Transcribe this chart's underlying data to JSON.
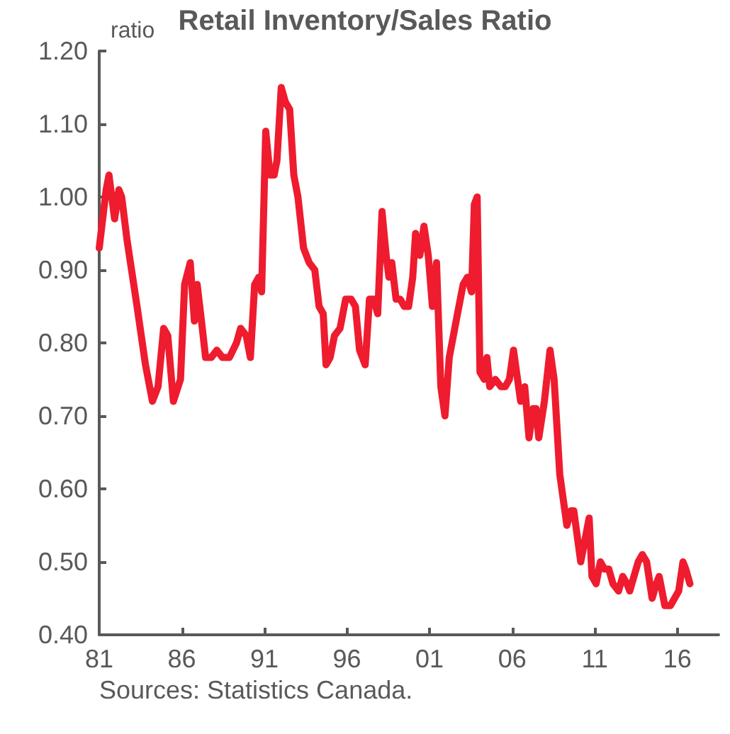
{
  "chart_data": {
    "type": "line",
    "title": "Retail Inventory/Sales Ratio",
    "ylabel": "ratio",
    "annotations": [
      "Sources: Statistics Canada."
    ],
    "x": [
      1981,
      1981.42,
      1981.59,
      1981.93,
      1982.19,
      1982.36,
      1982.69,
      1983.29,
      1983.8,
      1984.22,
      1984.56,
      1984.9,
      1985.15,
      1985.49,
      1985.92,
      1986.17,
      1986.51,
      1986.76,
      1986.93,
      1987.19,
      1987.44,
      1987.78,
      1988.12,
      1988.46,
      1988.88,
      1989.31,
      1989.56,
      1989.9,
      1990.15,
      1990.41,
      1990.66,
      1990.83,
      1991.08,
      1991.34,
      1991.59,
      1991.76,
      1992.02,
      1992.27,
      1992.53,
      1992.78,
      1993.03,
      1993.37,
      1993.71,
      1994.05,
      1994.31,
      1994.56,
      1994.73,
      1994.98,
      1995.24,
      1995.58,
      1995.92,
      1996.25,
      1996.51,
      1996.76,
      1997.1,
      1997.36,
      1997.61,
      1997.86,
      1998.12,
      1998.37,
      1998.54,
      1998.71,
      1998.97,
      1999.22,
      1999.47,
      1999.73,
      1999.98,
      2000.15,
      2000.41,
      2000.66,
      2000.92,
      2001.17,
      2001.42,
      2001.68,
      2001.93,
      2002.19,
      2002.69,
      2003.03,
      2003.29,
      2003.54,
      2003.71,
      2003.88,
      2004.05,
      2004.31,
      2004.47,
      2004.64,
      2004.98,
      2005.32,
      2005.58,
      2005.83,
      2006.08,
      2006.51,
      2006.76,
      2007.02,
      2007.27,
      2007.44,
      2007.61,
      2007.95,
      2008.29,
      2008.54,
      2008.88,
      2009.31,
      2009.56,
      2009.73,
      2010.15,
      2010.66,
      2010.83,
      2011.08,
      2011.34,
      2011.59,
      2011.85,
      2012.1,
      2012.44,
      2012.69,
      2012.95,
      2013.12,
      2013.37,
      2013.63,
      2013.88,
      2014.14,
      2014.47,
      2014.73,
      2014.9,
      2015.24,
      2015.58,
      2015.83,
      2016.08,
      2016.34,
      2016.51,
      2016.76
    ],
    "series": [
      {
        "color": "#ee1c2e",
        "values": [
          0.93,
          1.01,
          1.03,
          0.97,
          1.01,
          1.0,
          0.94,
          0.85,
          0.77,
          0.72,
          0.74,
          0.82,
          0.81,
          0.72,
          0.75,
          0.88,
          0.91,
          0.83,
          0.88,
          0.83,
          0.78,
          0.78,
          0.79,
          0.78,
          0.78,
          0.8,
          0.82,
          0.81,
          0.78,
          0.88,
          0.89,
          0.87,
          1.09,
          1.03,
          1.03,
          1.05,
          1.15,
          1.13,
          1.12,
          1.03,
          1.0,
          0.93,
          0.91,
          0.9,
          0.85,
          0.84,
          0.77,
          0.78,
          0.81,
          0.82,
          0.86,
          0.86,
          0.85,
          0.79,
          0.77,
          0.86,
          0.86,
          0.84,
          0.98,
          0.92,
          0.89,
          0.91,
          0.86,
          0.86,
          0.85,
          0.85,
          0.89,
          0.95,
          0.92,
          0.96,
          0.92,
          0.85,
          0.91,
          0.74,
          0.7,
          0.78,
          0.84,
          0.88,
          0.89,
          0.87,
          0.99,
          1.0,
          0.76,
          0.75,
          0.78,
          0.74,
          0.75,
          0.74,
          0.74,
          0.75,
          0.79,
          0.72,
          0.74,
          0.67,
          0.71,
          0.71,
          0.67,
          0.72,
          0.79,
          0.75,
          0.62,
          0.55,
          0.57,
          0.57,
          0.5,
          0.56,
          0.48,
          0.47,
          0.5,
          0.49,
          0.49,
          0.47,
          0.46,
          0.48,
          0.47,
          0.46,
          0.48,
          0.5,
          0.51,
          0.5,
          0.45,
          0.47,
          0.48,
          0.44,
          0.44,
          0.45,
          0.46,
          0.5,
          0.49,
          0.47
        ]
      }
    ],
    "xlim": [
      1981,
      2018.5
    ],
    "xticks": [
      {
        "value": 1981,
        "label": "81"
      },
      {
        "value": 1986,
        "label": "86"
      },
      {
        "value": 1991,
        "label": "91"
      },
      {
        "value": 1996,
        "label": "96"
      },
      {
        "value": 2001,
        "label": "01"
      },
      {
        "value": 2006,
        "label": "06"
      },
      {
        "value": 2011,
        "label": "11"
      },
      {
        "value": 2016,
        "label": "16"
      }
    ],
    "ylim": [
      0.4,
      1.2
    ],
    "yticks": [
      {
        "value": 0.4,
        "label": "0.40"
      },
      {
        "value": 0.5,
        "label": "0.50"
      },
      {
        "value": 0.6,
        "label": "0.60"
      },
      {
        "value": 0.7,
        "label": "0.70"
      },
      {
        "value": 0.8,
        "label": "0.80"
      },
      {
        "value": 0.9,
        "label": "0.90"
      },
      {
        "value": 1.0,
        "label": "1.00"
      },
      {
        "value": 1.1,
        "label": "1.10"
      },
      {
        "value": 1.2,
        "label": "1.20"
      }
    ],
    "grid": false,
    "marker": "none",
    "line_style": "solid"
  }
}
